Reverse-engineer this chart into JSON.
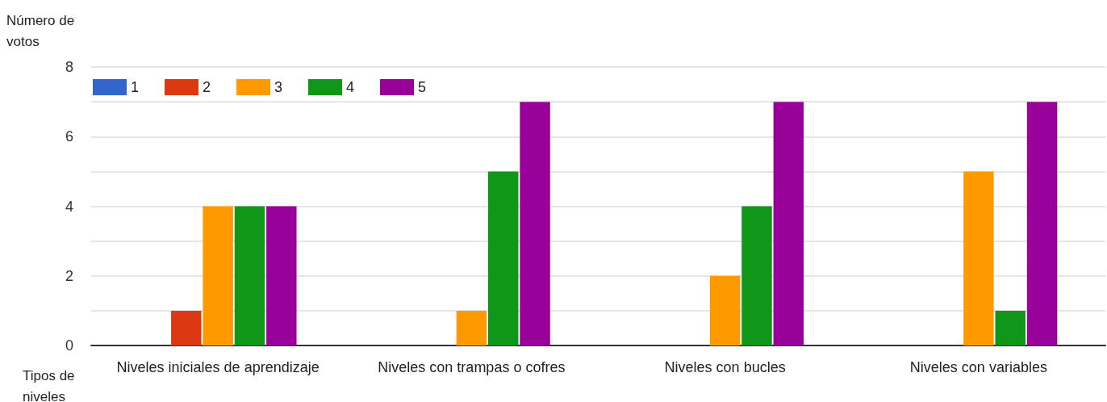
{
  "chart_data": {
    "type": "bar",
    "xlabel": "Tipos de niveles",
    "ylabel": "Número de votos",
    "categories": [
      "Niveles iniciales de aprendizaje",
      "Niveles con trampas o cofres",
      "Niveles con bucles",
      "Niveles con variables"
    ],
    "series": [
      {
        "name": "1",
        "color": "#3366cc",
        "values": [
          0,
          0,
          0,
          0
        ]
      },
      {
        "name": "2",
        "color": "#dc3912",
        "values": [
          1,
          0,
          0,
          0
        ]
      },
      {
        "name": "3",
        "color": "#ff9900",
        "values": [
          4,
          1,
          2,
          5
        ]
      },
      {
        "name": "4",
        "color": "#109618",
        "values": [
          4,
          5,
          4,
          1
        ]
      },
      {
        "name": "5",
        "color": "#990099",
        "values": [
          4,
          7,
          7,
          7
        ]
      }
    ],
    "ylim": [
      0,
      8
    ],
    "yticks": [
      0,
      {
        "value": 1,
        "label": null
      },
      2,
      {
        "value": 3,
        "label": null
      },
      4,
      {
        "value": 5,
        "label": null
      },
      6,
      {
        "value": 7,
        "label": null
      },
      8
    ],
    "grid": "y",
    "legend": "top left"
  }
}
